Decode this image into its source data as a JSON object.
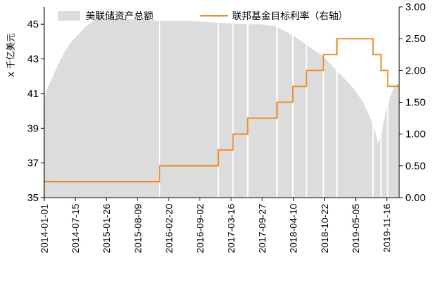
{
  "chart_data": {
    "type": "area",
    "title": "",
    "ylabel_left": "x 千亿美元",
    "left_axis": {
      "min": 35,
      "max": 46,
      "ticks": [
        35,
        37,
        39,
        41,
        43,
        45
      ]
    },
    "right_axis": {
      "min": 0,
      "max": 3,
      "ticks": [
        "0.00",
        "0.50",
        "1.00",
        "1.50",
        "2.00",
        "2.50",
        "3.00"
      ]
    },
    "x_range": [
      "2014-01-01",
      "2020-01-10"
    ],
    "x_ticks": [
      "2014-01-01",
      "2014-07-15",
      "2015-01-26",
      "2015-08-09",
      "2016-02-20",
      "2016-09-02",
      "2017-03-16",
      "2017-09-27",
      "2018-04-10",
      "2018-10-22",
      "2019-05-05",
      "2019-11-16"
    ],
    "legend": {
      "placement": "top",
      "items": [
        "美联储资产总额",
        "联邦基金目标利率（右轴）"
      ]
    },
    "colors": {
      "assets": "#dcdcdc",
      "rate": "#f28c28"
    },
    "series": [
      {
        "name": "美联储资产总额",
        "axis": "left",
        "points": [
          [
            "2014-01-01",
            40.7
          ],
          [
            "2014-01-20",
            41.3
          ],
          [
            "2014-02-20",
            41.9
          ],
          [
            "2014-03-20",
            42.5
          ],
          [
            "2014-04-20",
            43.1
          ],
          [
            "2014-05-20",
            43.6
          ],
          [
            "2014-06-20",
            44.0
          ],
          [
            "2014-07-20",
            44.3
          ],
          [
            "2014-08-20",
            44.6
          ],
          [
            "2014-09-20",
            44.9
          ],
          [
            "2014-10-20",
            45.1
          ],
          [
            "2014-11-20",
            45.3
          ],
          [
            "2014-12-20",
            45.4
          ],
          [
            "2015-03-01",
            45.35
          ],
          [
            "2015-06-01",
            45.3
          ],
          [
            "2015-09-01",
            45.25
          ],
          [
            "2015-12-01",
            45.2
          ],
          [
            "2016-03-01",
            45.2
          ],
          [
            "2016-06-01",
            45.2
          ],
          [
            "2016-09-01",
            45.15
          ],
          [
            "2016-12-01",
            45.1
          ],
          [
            "2017-03-01",
            45.05
          ],
          [
            "2017-06-01",
            45.0
          ],
          [
            "2017-09-01",
            45.0
          ],
          [
            "2017-12-01",
            44.9
          ],
          [
            "2018-02-01",
            44.6
          ],
          [
            "2018-04-01",
            44.3
          ],
          [
            "2018-06-01",
            43.9
          ],
          [
            "2018-08-01",
            43.5
          ],
          [
            "2018-10-01",
            43.1
          ],
          [
            "2018-12-01",
            42.5
          ],
          [
            "2019-02-01",
            41.9
          ],
          [
            "2019-04-01",
            41.3
          ],
          [
            "2019-06-01",
            40.5
          ],
          [
            "2019-07-15",
            39.6
          ],
          [
            "2019-08-15",
            38.8
          ],
          [
            "2019-09-01",
            38.1
          ],
          [
            "2019-09-20",
            38.6
          ],
          [
            "2019-10-15",
            39.8
          ],
          [
            "2019-11-15",
            40.8
          ],
          [
            "2019-12-15",
            41.5
          ],
          [
            "2020-01-10",
            41.6
          ]
        ]
      },
      {
        "name": "联邦基金目标利率（右轴）",
        "axis": "right",
        "steps": [
          [
            "2014-01-01",
            0.25
          ],
          [
            "2015-12-17",
            0.5
          ],
          [
            "2016-12-15",
            0.75
          ],
          [
            "2017-03-16",
            1.0
          ],
          [
            "2017-06-15",
            1.25
          ],
          [
            "2017-12-14",
            1.5
          ],
          [
            "2018-03-22",
            1.75
          ],
          [
            "2018-06-14",
            2.0
          ],
          [
            "2018-09-27",
            2.25
          ],
          [
            "2018-12-20",
            2.5
          ],
          [
            "2019-08-01",
            2.25
          ],
          [
            "2019-09-19",
            2.0
          ],
          [
            "2019-10-31",
            1.75
          ],
          [
            "2020-01-10",
            1.75
          ]
        ]
      }
    ]
  }
}
